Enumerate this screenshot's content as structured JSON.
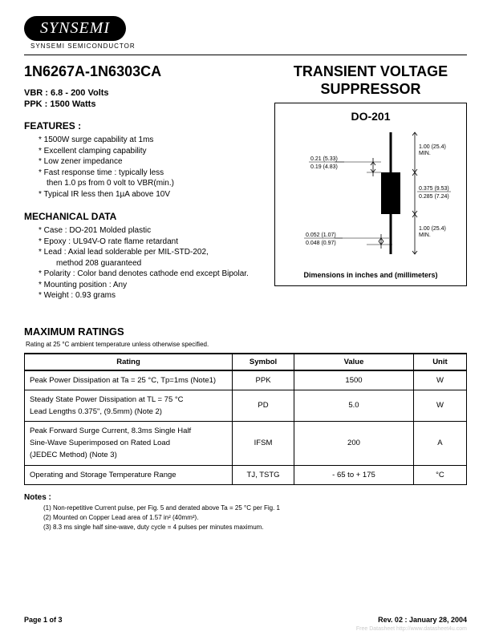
{
  "logo": {
    "brand": "SYNSEMI",
    "sub": "SYNSEMI SEMICONDUCTOR"
  },
  "header": {
    "part_range": "1N6267A-1N6303CA",
    "title_line1": "TRANSIENT VOLTAGE",
    "title_line2": "SUPPRESSOR"
  },
  "specs": {
    "vbr_label": "VBR : 6.8 - 200 Volts",
    "ppk_label": "PPK : 1500 Watts"
  },
  "features": {
    "title": "FEATURES :",
    "items": [
      "1500W surge capability at 1ms",
      "Excellent clamping capability",
      "Low zener impedance",
      "Fast response time : typically less",
      "Typical IR less then 1µA above 10V"
    ],
    "sub_after_3": "then 1.0 ps from 0 volt to VBR(min.)"
  },
  "mechanical": {
    "title": "MECHANICAL DATA",
    "items": [
      "Case : DO-201 Molded plastic",
      "Epoxy : UL94V-O rate flame retardant",
      "Lead : Axial lead solderable per MIL-STD-202,",
      "Polarity : Color band denotes cathode end except Bipolar.",
      "Mounting position : Any",
      "Weight :  0.93 grams"
    ],
    "sub_after_2": "method 208 guaranteed"
  },
  "package": {
    "name": "DO-201",
    "caption": "Dimensions in inches and (millimeters)",
    "dims": {
      "lead_dia_a": "0.21 (5.33)",
      "lead_dia_b": "0.19 (4.83)",
      "lead_len": "1.00 (25.4)",
      "lead_len_sub": "MIN.",
      "body_a": "0.375 (9.53)",
      "body_b": "0.285 (7.24)",
      "wire_a": "0.052 (1.07)",
      "wire_b": "0.048 (0.97)"
    }
  },
  "ratings": {
    "title": "MAXIMUM RATINGS",
    "note": "Rating at 25 °C ambient temperature unless otherwise specified.",
    "columns": [
      "Rating",
      "Symbol",
      "Value",
      "Unit"
    ],
    "rows": [
      {
        "rating": [
          "Peak Power Dissipation at Ta = 25 °C, Tp=1ms (Note1)"
        ],
        "symbol": "PPK",
        "value": "1500",
        "unit": "W"
      },
      {
        "rating": [
          "Steady State Power Dissipation at TL = 75 °C",
          "Lead Lengths 0.375\", (9.5mm) (Note 2)"
        ],
        "symbol": "PD",
        "value": "5.0",
        "unit": "W"
      },
      {
        "rating": [
          "Peak Forward Surge Current, 8.3ms Single Half",
          "Sine-Wave Superimposed on Rated Load",
          "(JEDEC Method) (Note 3)"
        ],
        "symbol": "IFSM",
        "value": "200",
        "unit": "A"
      },
      {
        "rating": [
          "Operating and Storage Temperature Range"
        ],
        "symbol": "TJ, TSTG",
        "value": "- 65 to + 175",
        "unit": "°C"
      }
    ]
  },
  "notes": {
    "title": "Notes :",
    "items": [
      "(1) Non-repetitive Current pulse, per Fig. 5 and derated above Ta = 25 °C per Fig. 1",
      "(2) Mounted on Copper Lead area of 1.57 in² (40mm²).",
      "(3) 8.3 ms single half sine-wave, duty cycle = 4 pulses per minutes maximum."
    ]
  },
  "footer": {
    "page": "Page 1 of 3",
    "rev": "Rev. 02 : January 28, 2004"
  },
  "watermark": "Free Datasheet http://www.datasheet4u.com",
  "colors": {
    "text": "#000000",
    "bg": "#ffffff",
    "border": "#000000"
  }
}
